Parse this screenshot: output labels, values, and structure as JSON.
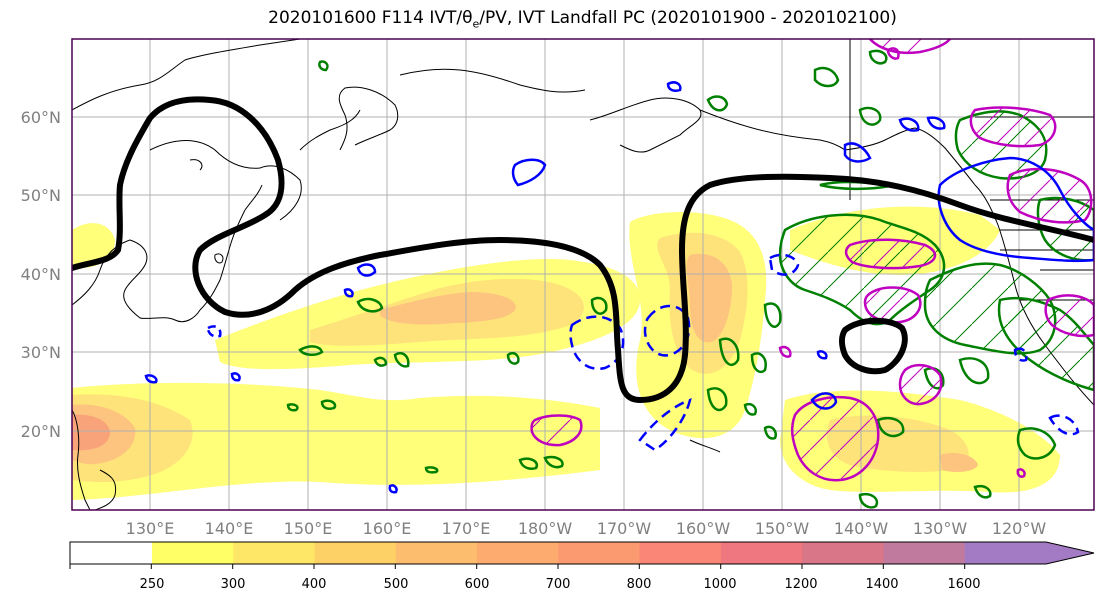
{
  "title": {
    "prefix": "2020101600 F114 IVT/",
    "theta": "θ",
    "theta_sub": "e",
    "suffix": "/PV, IVT Landfall PC (2020101900 - 2020102100)"
  },
  "map": {
    "lat_labels": [
      "60°N",
      "50°N",
      "40°N",
      "30°N",
      "20°N"
    ],
    "lon_labels": [
      "130°E",
      "140°E",
      "150°E",
      "160°E",
      "170°E",
      "180°W",
      "170°W",
      "160°W",
      "150°W",
      "140°W",
      "130°W",
      "120°W"
    ],
    "colors": {
      "theta_contour": "#000000",
      "pv_positive": "#008000",
      "pv_negative": "#0000ff",
      "landfall_pc": "#bf00bf",
      "grid": "#b0b0b0"
    }
  },
  "colorbar": {
    "ticks": [
      "250",
      "300",
      "400",
      "500",
      "600",
      "700",
      "800",
      "1000",
      "1200",
      "1400",
      "1600"
    ],
    "colors": [
      "#ffff66",
      "#fee766",
      "#fed166",
      "#fdbd6e",
      "#fdab6e",
      "#fb9a70",
      "#f98676",
      "#ee7780",
      "#d97788",
      "#c07a9e",
      "#a37bc5"
    ]
  }
}
